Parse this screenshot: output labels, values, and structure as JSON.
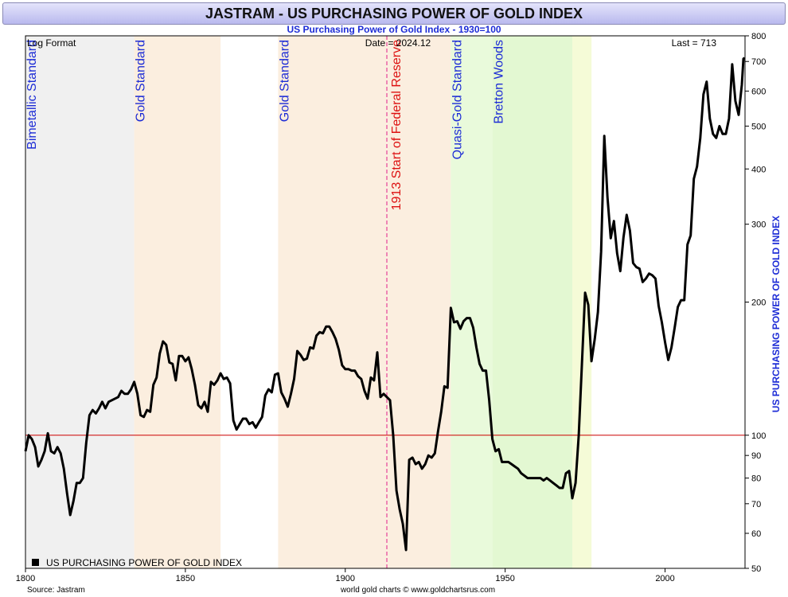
{
  "header": {
    "title": "JASTRAM - US PURCHASING POWER OF GOLD INDEX",
    "subtitle": "US Purchasing Power of Gold Index - 1930=100"
  },
  "annotations": {
    "log_format": "Log Format",
    "date": "Date = 2024.12",
    "last": "Last = 713",
    "legend": "US PURCHASING POWER OF GOLD INDEX",
    "source": "Source: Jastram",
    "footer": "world gold charts © www.goldchartsrus.com"
  },
  "colors": {
    "line": "#000000",
    "reference_line": "#cc0000",
    "fed_line": "#e0208a",
    "ylabel": "#1d2cd6",
    "era_label": "#1d2cd6",
    "fed_label": "#dd1111",
    "pre_era": "#f0f0f0",
    "gold_era": "#fbeedf",
    "quasi_gold": "#e9fadb",
    "bretton_woods": "#e3f8d2",
    "post_bw": "#f5fbd7",
    "background": "#ffffff",
    "title_bar": "#c9c9f3"
  },
  "chart_data": {
    "type": "line",
    "title": "JASTRAM - US PURCHASING POWER OF GOLD INDEX",
    "subtitle": "US Purchasing Power of Gold Index - 1930=100",
    "xlabel": "",
    "ylabel": "US PURCHASING POWER OF GOLD INDEX",
    "x_scale": "linear",
    "y_scale": "log",
    "xlim": [
      1800,
      2025
    ],
    "ylim": [
      50,
      800
    ],
    "x_ticks": [
      1800,
      1850,
      1900,
      1950,
      2000
    ],
    "y_ticks": [
      50,
      60,
      70,
      80,
      90,
      100,
      200,
      300,
      400,
      500,
      600,
      700,
      800
    ],
    "y_axis_side": "right",
    "grid": false,
    "legend": "bottom-left",
    "reference_line": {
      "y": 100
    },
    "vertical_line": {
      "x": 1913,
      "label": "1913 Start of Federal Reserve",
      "style": "dashed"
    },
    "regions": [
      {
        "x0": 1800,
        "x1": 1834,
        "label": "Bimetallic Standard",
        "color": "#f0f0f0"
      },
      {
        "x0": 1834,
        "x1": 1861,
        "label": "Gold Standard",
        "color": "#fbeedf"
      },
      {
        "x0": 1879,
        "x1": 1933,
        "label": "Gold Standard",
        "color": "#fbeedf"
      },
      {
        "x0": 1933,
        "x1": 1946,
        "label": "Quasi-Gold Standard",
        "color": "#e9fadb"
      },
      {
        "x0": 1946,
        "x1": 1971,
        "label": "Bretton Woods",
        "color": "#e3f8d2"
      },
      {
        "x0": 1971,
        "x1": 1977,
        "label": "",
        "color": "#f5fbd7"
      }
    ],
    "series": [
      {
        "name": "US PURCHASING POWER OF GOLD INDEX",
        "points": [
          [
            1800,
            92
          ],
          [
            1801,
            100
          ],
          [
            1802,
            98
          ],
          [
            1803,
            94
          ],
          [
            1804,
            85
          ],
          [
            1805,
            88
          ],
          [
            1806,
            92
          ],
          [
            1807,
            101
          ],
          [
            1808,
            92
          ],
          [
            1809,
            91
          ],
          [
            1810,
            94
          ],
          [
            1811,
            91
          ],
          [
            1812,
            84
          ],
          [
            1813,
            74
          ],
          [
            1814,
            66
          ],
          [
            1815,
            71
          ],
          [
            1816,
            78
          ],
          [
            1817,
            78
          ],
          [
            1818,
            80
          ],
          [
            1819,
            96
          ],
          [
            1820,
            111
          ],
          [
            1821,
            114
          ],
          [
            1822,
            112
          ],
          [
            1823,
            115
          ],
          [
            1824,
            119
          ],
          [
            1825,
            115
          ],
          [
            1826,
            119
          ],
          [
            1827,
            120
          ],
          [
            1828,
            121
          ],
          [
            1829,
            122
          ],
          [
            1830,
            126
          ],
          [
            1831,
            124
          ],
          [
            1832,
            124
          ],
          [
            1833,
            127
          ],
          [
            1834,
            132
          ],
          [
            1835,
            124
          ],
          [
            1836,
            111
          ],
          [
            1837,
            110
          ],
          [
            1838,
            114
          ],
          [
            1839,
            113
          ],
          [
            1840,
            130
          ],
          [
            1841,
            135
          ],
          [
            1842,
            153
          ],
          [
            1843,
            163
          ],
          [
            1844,
            160
          ],
          [
            1845,
            146
          ],
          [
            1846,
            145
          ],
          [
            1847,
            133
          ],
          [
            1848,
            151
          ],
          [
            1849,
            151
          ],
          [
            1850,
            147
          ],
          [
            1851,
            150
          ],
          [
            1852,
            141
          ],
          [
            1853,
            130
          ],
          [
            1854,
            117
          ],
          [
            1855,
            115
          ],
          [
            1856,
            119
          ],
          [
            1857,
            113
          ],
          [
            1858,
            132
          ],
          [
            1859,
            130
          ],
          [
            1860,
            133
          ],
          [
            1861,
            138
          ],
          [
            1862,
            134
          ],
          [
            1863,
            135
          ],
          [
            1864,
            131
          ],
          [
            1865,
            108
          ],
          [
            1866,
            103
          ],
          [
            1867,
            106
          ],
          [
            1868,
            109
          ],
          [
            1869,
            109
          ],
          [
            1870,
            106
          ],
          [
            1871,
            107
          ],
          [
            1872,
            104
          ],
          [
            1873,
            107
          ],
          [
            1874,
            110
          ],
          [
            1875,
            123
          ],
          [
            1876,
            127
          ],
          [
            1877,
            125
          ],
          [
            1878,
            137
          ],
          [
            1879,
            138
          ],
          [
            1880,
            125
          ],
          [
            1881,
            121
          ],
          [
            1882,
            116
          ],
          [
            1883,
            124
          ],
          [
            1884,
            134
          ],
          [
            1885,
            155
          ],
          [
            1886,
            152
          ],
          [
            1887,
            148
          ],
          [
            1888,
            149
          ],
          [
            1889,
            158
          ],
          [
            1890,
            157
          ],
          [
            1891,
            168
          ],
          [
            1892,
            171
          ],
          [
            1893,
            170
          ],
          [
            1894,
            176
          ],
          [
            1895,
            176
          ],
          [
            1896,
            171
          ],
          [
            1897,
            165
          ],
          [
            1898,
            156
          ],
          [
            1899,
            144
          ],
          [
            1900,
            141
          ],
          [
            1901,
            141
          ],
          [
            1902,
            140
          ],
          [
            1903,
            140
          ],
          [
            1904,
            136
          ],
          [
            1905,
            134
          ],
          [
            1906,
            126
          ],
          [
            1907,
            121
          ],
          [
            1908,
            135
          ],
          [
            1909,
            133
          ],
          [
            1910,
            154
          ],
          [
            1911,
            122
          ],
          [
            1912,
            124
          ],
          [
            1913,
            122
          ],
          [
            1914,
            120
          ],
          [
            1915,
            100
          ],
          [
            1916,
            75
          ],
          [
            1917,
            68
          ],
          [
            1918,
            63
          ],
          [
            1919,
            55
          ],
          [
            1920,
            88
          ],
          [
            1921,
            89
          ],
          [
            1922,
            86
          ],
          [
            1923,
            87
          ],
          [
            1924,
            84
          ],
          [
            1925,
            86
          ],
          [
            1926,
            90
          ],
          [
            1927,
            89
          ],
          [
            1928,
            91
          ],
          [
            1929,
            102
          ],
          [
            1930,
            113
          ],
          [
            1931,
            129
          ],
          [
            1932,
            128
          ],
          [
            1933,
            194
          ],
          [
            1934,
            180
          ],
          [
            1935,
            181
          ],
          [
            1936,
            174
          ],
          [
            1937,
            181
          ],
          [
            1938,
            184
          ],
          [
            1939,
            184
          ],
          [
            1940,
            175
          ],
          [
            1941,
            158
          ],
          [
            1942,
            145
          ],
          [
            1943,
            140
          ],
          [
            1944,
            140
          ],
          [
            1945,
            120
          ],
          [
            1946,
            98
          ],
          [
            1947,
            92
          ],
          [
            1948,
            93
          ],
          [
            1949,
            87
          ],
          [
            1950,
            87
          ],
          [
            1951,
            87
          ],
          [
            1952,
            86
          ],
          [
            1953,
            85
          ],
          [
            1954,
            84
          ],
          [
            1955,
            82
          ],
          [
            1956,
            81
          ],
          [
            1957,
            80
          ],
          [
            1958,
            80
          ],
          [
            1959,
            80
          ],
          [
            1960,
            80
          ],
          [
            1961,
            80
          ],
          [
            1962,
            79
          ],
          [
            1963,
            80
          ],
          [
            1964,
            79
          ],
          [
            1965,
            78
          ],
          [
            1966,
            77
          ],
          [
            1967,
            76
          ],
          [
            1968,
            76
          ],
          [
            1969,
            82
          ],
          [
            1970,
            83
          ],
          [
            1971,
            72
          ],
          [
            1972,
            78
          ],
          [
            1973,
            100
          ],
          [
            1974,
            145
          ],
          [
            1975,
            210
          ],
          [
            1976,
            197
          ],
          [
            1977,
            147
          ],
          [
            1978,
            165
          ],
          [
            1979,
            190
          ],
          [
            1980,
            260
          ],
          [
            1981,
            475
          ],
          [
            1982,
            345
          ],
          [
            1983,
            279
          ],
          [
            1984,
            305
          ],
          [
            1985,
            258
          ],
          [
            1986,
            235
          ],
          [
            1987,
            280
          ],
          [
            1988,
            315
          ],
          [
            1989,
            290
          ],
          [
            1990,
            245
          ],
          [
            1991,
            240
          ],
          [
            1992,
            238
          ],
          [
            1993,
            222
          ],
          [
            1994,
            226
          ],
          [
            1995,
            232
          ],
          [
            1996,
            230
          ],
          [
            1997,
            226
          ],
          [
            1998,
            196
          ],
          [
            1999,
            180
          ],
          [
            2000,
            162
          ],
          [
            2001,
            148
          ],
          [
            2002,
            158
          ],
          [
            2003,
            175
          ],
          [
            2004,
            195
          ],
          [
            2005,
            202
          ],
          [
            2006,
            202
          ],
          [
            2007,
            270
          ],
          [
            2008,
            283
          ],
          [
            2009,
            380
          ],
          [
            2010,
            405
          ],
          [
            2011,
            470
          ],
          [
            2012,
            590
          ],
          [
            2013,
            630
          ],
          [
            2014,
            520
          ],
          [
            2015,
            480
          ],
          [
            2016,
            470
          ],
          [
            2017,
            500
          ],
          [
            2018,
            480
          ],
          [
            2019,
            480
          ],
          [
            2020,
            520
          ],
          [
            2021,
            690
          ],
          [
            2022,
            570
          ],
          [
            2023,
            530
          ],
          [
            2024,
            620
          ],
          [
            2024.5,
            710
          ],
          [
            2024.9,
            713
          ]
        ]
      }
    ]
  }
}
